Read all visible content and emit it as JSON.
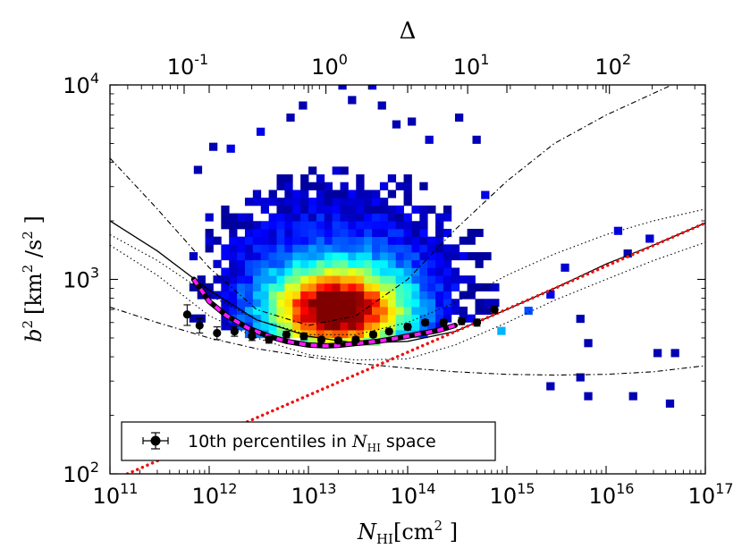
{
  "chart_data": {
    "type": "scatter",
    "xlabel_var": "N",
    "xlabel_sub": "HI",
    "xlabel_unit": "[cm",
    "xlabel_unit_exp": "2",
    "xlabel_unit_close": " ]",
    "ylabel_var": "b",
    "ylabel_var_exp": "2",
    "ylabel_unit": "[km",
    "ylabel_unit_exp": "2",
    "ylabel_unit_mid": " /s",
    "ylabel_unit_exp2": "2",
    "ylabel_unit_close": " ]",
    "top_axis_label": "Δ",
    "x_scale": "log",
    "y_scale": "log",
    "xlim": [
      100000000000.0,
      1e+17
    ],
    "ylim": [
      100,
      10000
    ],
    "x_ticks": [
      {
        "value": 100000000000.0,
        "base": "10",
        "exp": "11"
      },
      {
        "value": 1000000000000.0,
        "base": "10",
        "exp": "12"
      },
      {
        "value": 10000000000000.0,
        "base": "10",
        "exp": "13"
      },
      {
        "value": 100000000000000.0,
        "base": "10",
        "exp": "14"
      },
      {
        "value": 1000000000000000.0,
        "base": "10",
        "exp": "15"
      },
      {
        "value": 1e+16,
        "base": "10",
        "exp": "16"
      },
      {
        "value": 1e+17,
        "base": "10",
        "exp": "17"
      }
    ],
    "y_ticks": [
      {
        "value": 100,
        "base": "10",
        "exp": "2"
      },
      {
        "value": 1000,
        "base": "10",
        "exp": "3"
      },
      {
        "value": 10000,
        "base": "10",
        "exp": "4"
      }
    ],
    "top_ticks": [
      {
        "value": 0.1,
        "base": "10",
        "exp": "-1"
      },
      {
        "value": 1,
        "base": "10",
        "exp": "0"
      },
      {
        "value": 10,
        "base": "10",
        "exp": "1"
      },
      {
        "value": 100,
        "base": "10",
        "exp": "2"
      }
    ],
    "top_axis_map": {
      "N_at_delta_1": 15000000000000.0,
      "slope": 1.4286
    },
    "legend": {
      "location": "lower-left",
      "label_prefix": "10th percentiles in ",
      "label_var": "N",
      "label_sub": "HI",
      "label_suffix": " space"
    },
    "series": [
      {
        "name": "10th percentiles in N_HI space",
        "style": "black-points-errorbars",
        "x": [
          600000000000.0,
          800000000000.0,
          1200000000000.0,
          1800000000000.0,
          2700000000000.0,
          4000000000000.0,
          6000000000000.0,
          9000000000000.0,
          13500000000000.0,
          20000000000000.0,
          30000000000000.0,
          45000000000000.0,
          65000000000000.0,
          100000000000000.0,
          150000000000000.0,
          230000000000000.0,
          350000000000000.0,
          500000000000000.0,
          750000000000000.0
        ],
        "y": [
          660,
          580,
          530,
          540,
          510,
          490,
          520,
          510,
          490,
          485,
          490,
          520,
          540,
          570,
          600,
          600,
          610,
          600,
          700
        ],
        "yerr": [
          80,
          50,
          40,
          30,
          25,
          20,
          20,
          20,
          15,
          15,
          15,
          15,
          15,
          20,
          20,
          20,
          25,
          25,
          30
        ]
      },
      {
        "name": "magenta-dashed-fit",
        "style": "magenta-dashed-over-black",
        "x": [
          700000000000.0,
          1000000000000.0,
          1500000000000.0,
          2500000000000.0,
          4000000000000.0,
          6000000000000.0,
          10000000000000.0,
          15000000000000.0,
          20000000000000.0,
          30000000000000.0,
          50000000000000.0,
          80000000000000.0,
          120000000000000.0,
          200000000000000.0,
          300000000000000.0
        ],
        "y": [
          1000,
          770,
          650,
          560,
          510,
          480,
          460,
          455,
          458,
          468,
          480,
          500,
          520,
          545,
          580
        ]
      },
      {
        "name": "black-solid-fit",
        "style": "black-solid",
        "x": [
          100000000000.0,
          300000000000.0,
          1000000000000.0,
          3000000000000.0,
          10000000000000.0,
          30000000000000.0,
          100000000000000.0,
          300000000000000.0,
          1000000000000000.0,
          3000000000000000.0,
          1e+16,
          3e+16,
          1e+17
        ],
        "y": [
          2000,
          1400,
          880,
          620,
          510,
          470,
          480,
          540,
          700,
          900,
          1200,
          1500,
          1950
        ]
      },
      {
        "name": "red-dotted-power-law",
        "style": "red-dotted",
        "x": [
          150000000000.0,
          1e+17
        ],
        "y": [
          100,
          1950
        ]
      },
      {
        "name": "dotted-upper",
        "style": "black-dotted",
        "x": [
          100000000000.0,
          300000000000.0,
          1000000000000.0,
          3000000000000.0,
          10000000000000.0,
          30000000000000.0,
          100000000000000.0,
          300000000000000.0,
          1000000000000000.0,
          3000000000000000.0,
          1e+16,
          3e+16,
          1e+17
        ],
        "y": [
          1700,
          1250,
          830,
          620,
          520,
          520,
          600,
          760,
          1050,
          1350,
          1700,
          2000,
          2300
        ]
      },
      {
        "name": "dotted-lower",
        "style": "black-dotted",
        "x": [
          100000000000.0,
          300000000000.0,
          1000000000000.0,
          3000000000000.0,
          10000000000000.0,
          30000000000000.0,
          100000000000000.0,
          300000000000000.0,
          1000000000000000.0,
          3000000000000000.0,
          1e+16,
          3e+16,
          1e+17
        ],
        "y": [
          1500,
          1050,
          650,
          500,
          410,
          385,
          390,
          460,
          600,
          780,
          1000,
          1250,
          1550
        ]
      },
      {
        "name": "dashdot-upper",
        "style": "black-dashdot",
        "x": [
          100000000000.0,
          300000000000.0,
          1000000000000.0,
          3000000000000.0,
          10000000000000.0,
          30000000000000.0,
          100000000000000.0,
          300000000000000.0,
          1000000000000000.0,
          3000000000000000.0,
          1e+16,
          1e+17
        ],
        "y": [
          4200,
          2300,
          1150,
          700,
          580,
          650,
          1000,
          1800,
          3200,
          5000,
          7000,
          12000
        ]
      },
      {
        "name": "dashdot-lower",
        "style": "black-dashdot",
        "x": [
          100000000000.0,
          300000000000.0,
          1000000000000.0,
          3000000000000.0,
          10000000000000.0,
          30000000000000.0,
          100000000000000.0,
          300000000000000.0,
          1000000000000000.0,
          3000000000000000.0,
          1e+16,
          3e+16,
          1e+17
        ],
        "y": [
          720,
          600,
          500,
          440,
          400,
          370,
          350,
          335,
          325,
          322,
          325,
          335,
          360
        ]
      }
    ],
    "heatmap": {
      "type": "heatmap",
      "x_bin_log_width": 0.08,
      "y_bin_log_width": 0.04,
      "colormap": "jet",
      "core": {
        "x": 18000000000000.0,
        "y": 660
      },
      "outliers": [
        {
          "x": 700000000000.0,
          "y": 3500,
          "density": 0.05
        },
        {
          "x": 1500000000000.0,
          "y": 4500,
          "density": 0.1
        },
        {
          "x": 3000000000000.0,
          "y": 5500,
          "density": 0.1
        },
        {
          "x": 6000000000000.0,
          "y": 6500,
          "density": 0.05
        },
        {
          "x": 20000000000000.0,
          "y": 9500,
          "density": 0.05
        },
        {
          "x": 25000000000000.0,
          "y": 8000,
          "density": 0.05
        },
        {
          "x": 40000000000000.0,
          "y": 9500,
          "density": 0.08
        },
        {
          "x": 50000000000000.0,
          "y": 7500,
          "density": 0.05
        },
        {
          "x": 70000000000000.0,
          "y": 6000,
          "density": 0.05
        },
        {
          "x": 150000000000000.0,
          "y": 5000,
          "density": 0.08
        },
        {
          "x": 300000000000000.0,
          "y": 6500,
          "density": 0.05
        },
        {
          "x": 450000000000000.0,
          "y": 5000,
          "density": 0.05
        },
        {
          "x": 550000000000000.0,
          "y": 2600,
          "density": 0.1
        },
        {
          "x": 1000000000000.0,
          "y": 4600,
          "density": 0.05
        },
        {
          "x": 8000000000000.0,
          "y": 7500,
          "density": 0.05
        },
        {
          "x": 100000000000000.0,
          "y": 6200,
          "density": 0.05
        },
        {
          "x": 1.2e+16,
          "y": 1700,
          "density": 0.1
        },
        {
          "x": 2.5e+16,
          "y": 1550,
          "density": 0.08
        },
        {
          "x": 1.5e+16,
          "y": 1300,
          "density": 0.05
        },
        {
          "x": 3500000000000000.0,
          "y": 1100,
          "density": 0.08
        },
        {
          "x": 2500000000000000.0,
          "y": 800,
          "density": 0.1
        },
        {
          "x": 5000000000000000.0,
          "y": 600,
          "density": 0.05
        },
        {
          "x": 6000000000000000.0,
          "y": 450,
          "density": 0.05
        },
        {
          "x": 2500000000000000.0,
          "y": 270,
          "density": 0.05
        },
        {
          "x": 5000000000000000.0,
          "y": 300,
          "density": 0.05
        },
        {
          "x": 6000000000000000.0,
          "y": 240,
          "density": 0.05
        },
        {
          "x": 1.7e+16,
          "y": 240,
          "density": 0.05
        },
        {
          "x": 3e+16,
          "y": 400,
          "density": 0.05
        },
        {
          "x": 4.5e+16,
          "y": 400,
          "density": 0.05
        },
        {
          "x": 4e+16,
          "y": 220,
          "density": 0.05
        },
        {
          "x": 1500000000000000.0,
          "y": 660,
          "density": 0.2
        },
        {
          "x": 800000000000000.0,
          "y": 520,
          "density": 0.3
        }
      ]
    }
  }
}
